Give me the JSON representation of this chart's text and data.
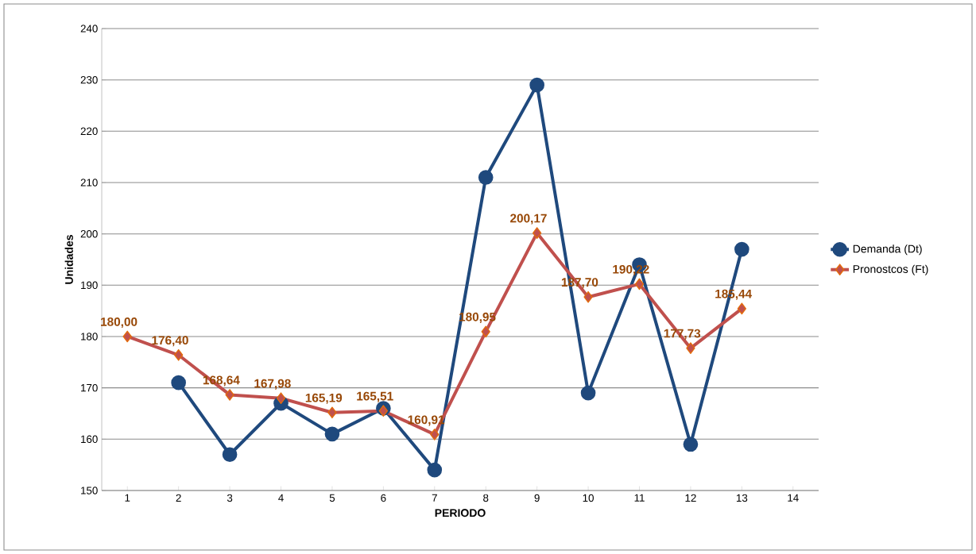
{
  "chart_data": {
    "type": "line",
    "xlabel": "PERIODO",
    "ylabel": "Unidades",
    "categories": [
      "1",
      "2",
      "3",
      "4",
      "5",
      "6",
      "7",
      "8",
      "9",
      "10",
      "11",
      "12",
      "13",
      "14"
    ],
    "series": [
      {
        "name": "Demanda (Dt)",
        "color": "#1f497d",
        "marker": "circle",
        "values": [
          null,
          171,
          157,
          167,
          161,
          166,
          154,
          211,
          229,
          169,
          194,
          159,
          197,
          null
        ]
      },
      {
        "name": "Pronostcos (Ft)",
        "color": "#c0504d",
        "marker": "diamond",
        "values": [
          180.0,
          176.4,
          168.64,
          167.98,
          165.19,
          165.51,
          160.91,
          180.95,
          200.17,
          187.7,
          190.22,
          177.73,
          185.44,
          null
        ],
        "value_labels": [
          "180,00",
          "176,40",
          "168,64",
          "167,98",
          "165,19",
          "165,51",
          "160,91",
          "180,95",
          "200,17",
          "187,70",
          "190,22",
          "177,73",
          "185,44",
          null
        ]
      }
    ],
    "ylim": [
      150,
      240
    ],
    "yticks": [
      150,
      160,
      170,
      180,
      190,
      200,
      210,
      220,
      230,
      240
    ],
    "grid": "y",
    "legend": "right",
    "line_style": "solid"
  }
}
